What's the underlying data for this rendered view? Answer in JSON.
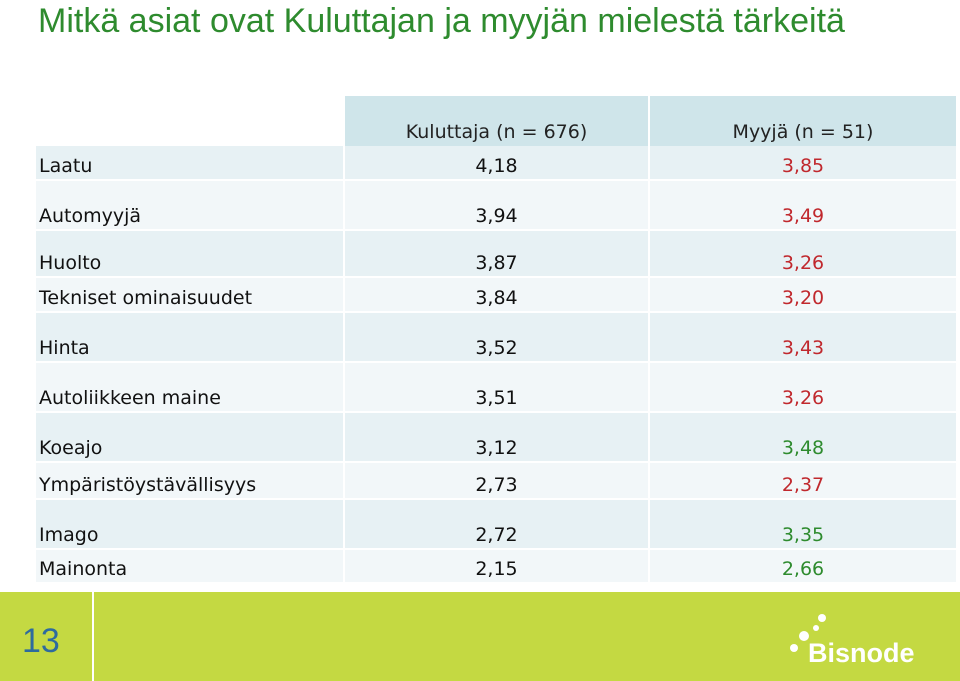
{
  "title": "Mitkä asiat ovat Kuluttajan ja myyjän mielestä tärkeitä",
  "table": {
    "headers": [
      "Kuluttaja (n = 676)",
      "Myyjä (n = 51)"
    ],
    "rows": [
      {
        "category": "Laatu",
        "kuluttaja": "4,18",
        "myyja": "3,85",
        "myyja_color": "#c0282d"
      },
      {
        "category": "Automyyjä",
        "kuluttaja": "3,94",
        "myyja": "3,49",
        "myyja_color": "#c0282d"
      },
      {
        "category": "Huolto",
        "kuluttaja": "3,87",
        "myyja": "3,26",
        "myyja_color": "#c0282d"
      },
      {
        "category": "Tekniset ominaisuudet",
        "kuluttaja": "3,84",
        "myyja": "3,20",
        "myyja_color": "#c0282d"
      },
      {
        "category": "Hinta",
        "kuluttaja": "3,52",
        "myyja": "3,43",
        "myyja_color": "#c0282d"
      },
      {
        "category": "Autoliikkeen maine",
        "kuluttaja": "3,51",
        "myyja": "3,26",
        "myyja_color": "#c0282d"
      },
      {
        "category": "Koeajo",
        "kuluttaja": "3,12",
        "myyja": "3,48",
        "myyja_color": "#2e8b2e"
      },
      {
        "category": "Ympäristöystävällisyys",
        "kuluttaja": "2,73",
        "myyja": "2,37",
        "myyja_color": "#c0282d"
      },
      {
        "category": "Imago",
        "kuluttaja": "2,72",
        "myyja": "3,35",
        "myyja_color": "#2e8b2e"
      },
      {
        "category": "Mainonta",
        "kuluttaja": "2,15",
        "myyja": "2,66",
        "myyja_color": "#2e8b2e"
      }
    ]
  },
  "footer": {
    "page_number": "13",
    "logo_text": "Bisnode"
  },
  "colors": {
    "title": "#2e8b2e",
    "footer_bg": "#c4d942",
    "header_bg": "#cfe5ea",
    "row_dark": "#e7f1f4",
    "row_light": "#f2f7f9"
  }
}
